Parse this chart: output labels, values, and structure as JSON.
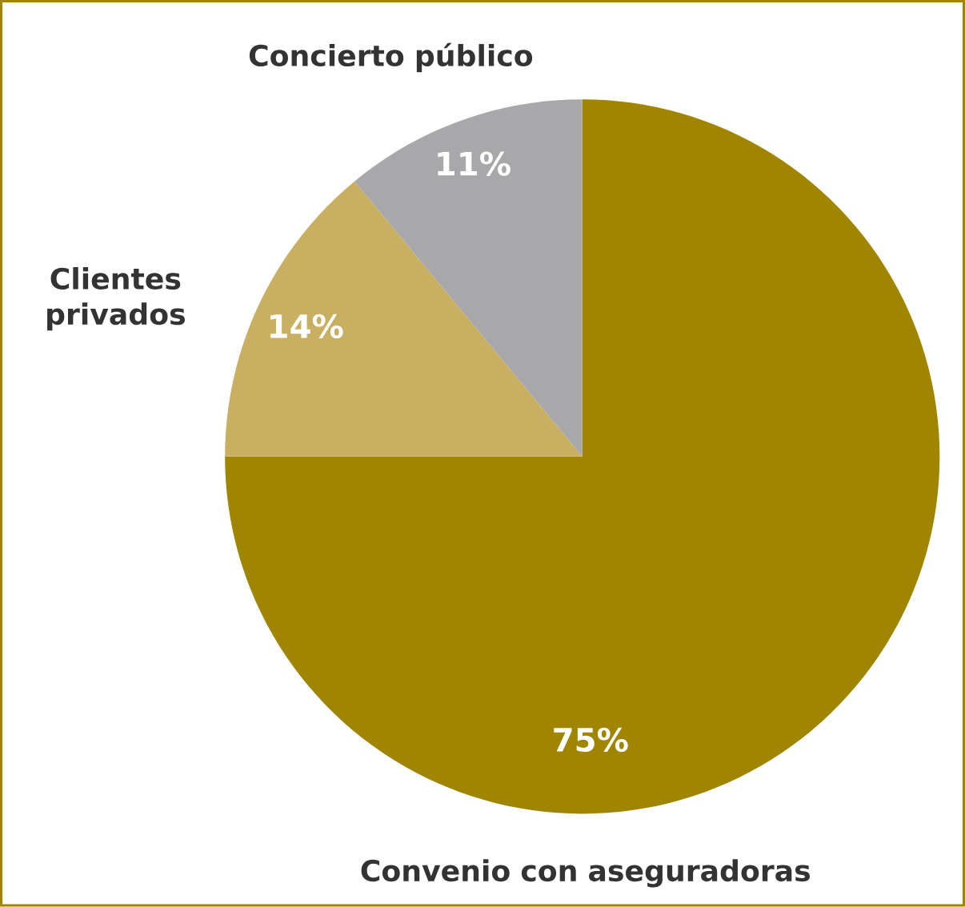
{
  "chart_data": {
    "type": "pie",
    "categories": [
      "Convenio con aseguradoras",
      "Clientes privados",
      "Concierto público"
    ],
    "values": [
      75,
      14,
      11
    ],
    "colors": [
      "#a08500",
      "#c8af62",
      "#a8a8aa"
    ],
    "value_labels": [
      "75%",
      "14%",
      "11%"
    ]
  }
}
